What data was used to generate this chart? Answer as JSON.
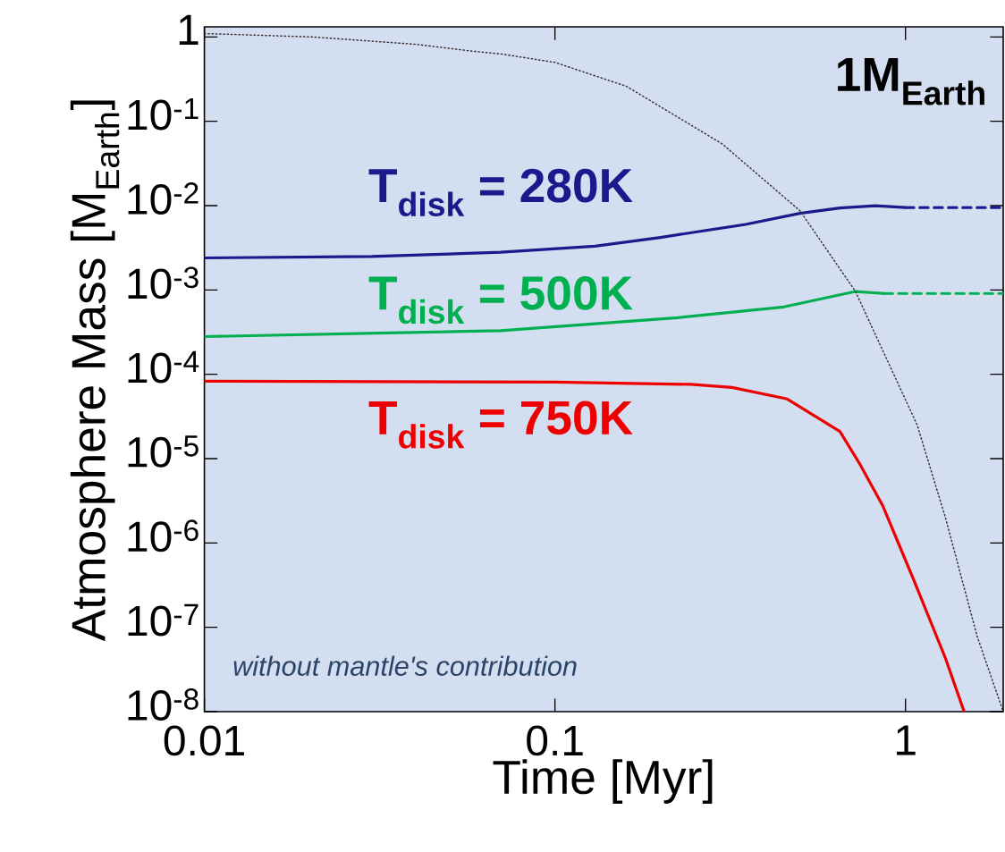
{
  "chart_data": {
    "type": "line",
    "xlabel": "Time [Myr]",
    "ylabel": "Atmosphere Mass [M$_{Earth}$]",
    "log": "xy",
    "marker": "none",
    "xlim": [
      0.01,
      1.9
    ],
    "ylim": [
      1e-08,
      1.32
    ],
    "xticks": [
      0.01,
      0.1,
      1
    ],
    "yticks": [
      1,
      {
        "value": 0.1,
        "label": "10$^{-1}$"
      },
      {
        "value": 0.01,
        "label": "10$^{-2}$"
      },
      {
        "value": 0.001,
        "label": "10$^{-3}$"
      },
      {
        "value": 0.0001,
        "label": "10$^{-4}$"
      },
      {
        "value": 1e-05,
        "label": "10$^{-5}$"
      },
      {
        "value": 1e-06,
        "label": "10$^{-6}$"
      },
      {
        "value": 1e-07,
        "label": "10$^{-7}$"
      },
      {
        "value": 1e-08,
        "label": "10$^{-8}$"
      }
    ],
    "annotations": [
      "1M$_{Earth}$",
      "*without mantle's contribution*"
    ],
    "series": [
      {
        "name": "T$_{disk}$ = 280K",
        "color": "#1a1a8c",
        "line_style": "solid",
        "x": [
          0.01,
          0.03,
          0.07,
          0.13,
          0.2,
          0.35,
          0.5,
          0.65,
          0.82,
          1.0
        ],
        "values": [
          0.0024,
          0.0025,
          0.0028,
          0.0033,
          0.0042,
          0.006,
          0.0081,
          0.0094,
          0.01,
          0.0095
        ]
      },
      {
        "color": "#1a1a8c",
        "line_style": "dashed",
        "x": [
          1.0,
          1.9
        ],
        "values": [
          0.0095,
          0.0095
        ]
      },
      {
        "name": "T$_{disk}$ = 500K",
        "color": "#00b050",
        "line_style": "solid",
        "x": [
          0.01,
          0.07,
          0.224,
          0.45,
          0.72,
          0.87
        ],
        "values": [
          0.00028,
          0.00033,
          0.00047,
          0.00063,
          0.00096,
          0.00091
        ]
      },
      {
        "color": "#00b050",
        "line_style": "dashed",
        "x": [
          0.87,
          1.9
        ],
        "values": [
          0.00091,
          0.00091
        ]
      },
      {
        "name": "T$_{disk}$ = 750K",
        "color": "#ee0000",
        "line_style": "solid",
        "x": [
          0.01,
          0.1,
          0.244,
          0.32,
          0.46,
          0.65,
          0.74,
          0.86,
          1.06,
          1.3,
          1.47
        ],
        "values": [
          8.3e-05,
          8.1e-05,
          7.6e-05,
          7e-05,
          5.1e-05,
          2.1e-05,
          8.7e-06,
          2.8e-06,
          3.5e-07,
          4.3e-08,
          1e-08
        ]
      },
      {
        "color": "#3a3030",
        "line_style": "dotted",
        "x": [
          0.01,
          0.0204,
          0.04,
          0.058,
          0.07,
          0.1,
          0.16,
          0.3,
          0.5,
          0.72,
          1.08,
          1.3,
          1.6,
          1.9
        ],
        "values": [
          1.1,
          1.0,
          0.82,
          0.68,
          0.63,
          0.5,
          0.26,
          0.054,
          0.0087,
          0.00096,
          2.5e-05,
          2e-06,
          7.9e-08,
          1e-08
        ]
      }
    ]
  }
}
